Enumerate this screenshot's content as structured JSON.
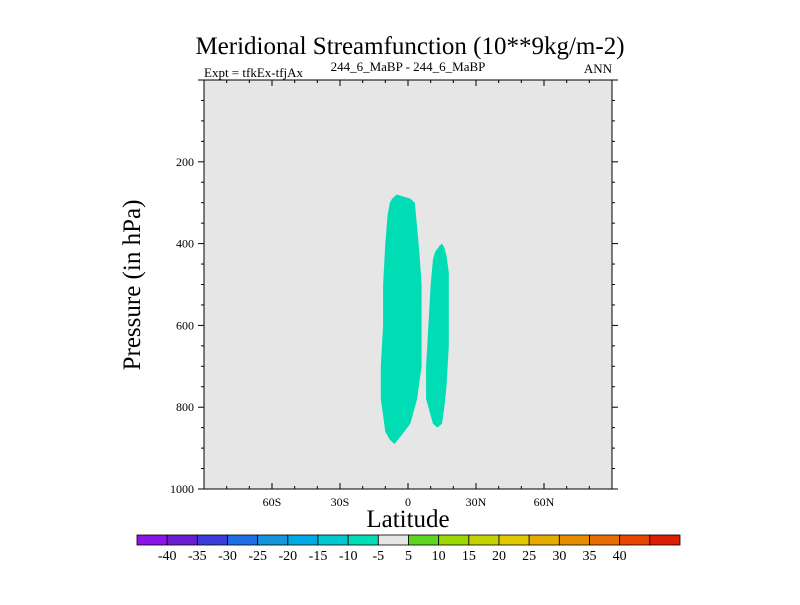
{
  "chart_data": {
    "type": "contour",
    "title": "Meridional Streamfunction (10**9kg/m-2)",
    "left_string": "Expt = tfkEx-tfjAx",
    "center_string": "244_6_MaBP - 244_6_MaBP",
    "right_string": "ANN",
    "xlabel": "Latitude",
    "ylabel": "Pressure (in hPa)",
    "xlim": [
      -90,
      90
    ],
    "ylim": [
      1000,
      0
    ],
    "x_ticks": [
      {
        "value": -60,
        "label": "60S"
      },
      {
        "value": -30,
        "label": "30S"
      },
      {
        "value": 0,
        "label": "0"
      },
      {
        "value": 30,
        "label": "30N"
      },
      {
        "value": 60,
        "label": "60N"
      }
    ],
    "y_ticks": [
      {
        "value": 200,
        "label": "200"
      },
      {
        "value": 400,
        "label": "400"
      },
      {
        "value": 600,
        "label": "600"
      },
      {
        "value": 800,
        "label": "800"
      },
      {
        "value": 1000,
        "label": "1000"
      }
    ],
    "background_color": "#e6e6e6",
    "regions": [
      {
        "range": "-10 to -5",
        "color": "#00dcb4",
        "outline": [
          [
            -7,
            290
          ],
          [
            -5,
            280
          ],
          [
            -2,
            285
          ],
          [
            1,
            290
          ],
          [
            3,
            300
          ],
          [
            4,
            360
          ],
          [
            5,
            420
          ],
          [
            6,
            500
          ],
          [
            6,
            600
          ],
          [
            6,
            700
          ],
          [
            4,
            780
          ],
          [
            1,
            840
          ],
          [
            -3,
            870
          ],
          [
            -6,
            890
          ],
          [
            -8,
            880
          ],
          [
            -10,
            860
          ],
          [
            -11,
            820
          ],
          [
            -12,
            780
          ],
          [
            -12,
            700
          ],
          [
            -11,
            600
          ],
          [
            -11,
            500
          ],
          [
            -10,
            400
          ],
          [
            -9,
            330
          ],
          [
            -8,
            300
          ]
        ]
      },
      {
        "range": "-10 to -5",
        "color": "#00dcb4",
        "outline": [
          [
            15,
            400
          ],
          [
            16,
            410
          ],
          [
            17,
            430
          ],
          [
            18,
            470
          ],
          [
            18,
            550
          ],
          [
            18,
            650
          ],
          [
            17,
            750
          ],
          [
            16,
            800
          ],
          [
            15,
            840
          ],
          [
            13,
            850
          ],
          [
            11,
            840
          ],
          [
            9,
            800
          ],
          [
            8,
            780
          ],
          [
            8,
            700
          ],
          [
            9,
            600
          ],
          [
            10,
            500
          ],
          [
            11,
            440
          ],
          [
            12,
            420
          ],
          [
            14,
            405
          ]
        ]
      }
    ],
    "colorbar": {
      "colors": [
        "#8c14e6",
        "#6a1ed2",
        "#3c3cdc",
        "#1e6ee6",
        "#1496dc",
        "#00aae6",
        "#00c8d2",
        "#00dcb4",
        "#e6e6e6",
        "#5ad71e",
        "#9bd700",
        "#c3d200",
        "#e1c800",
        "#e6aa00",
        "#e68c00",
        "#e66e00",
        "#e64600",
        "#dc1e00"
      ],
      "labels": [
        "-40",
        "-35",
        "-30",
        "-25",
        "-20",
        "-15",
        "-10",
        "-5",
        "5",
        "10",
        "15",
        "20",
        "25",
        "30",
        "35",
        "40"
      ]
    }
  }
}
